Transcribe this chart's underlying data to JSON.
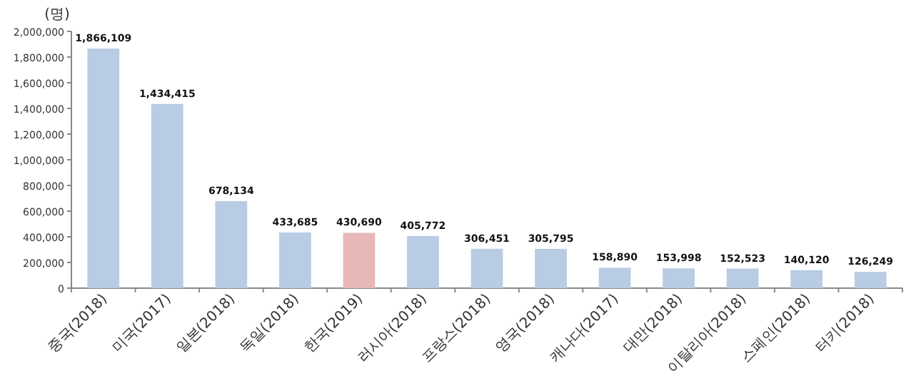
{
  "chart_data": {
    "type": "bar",
    "ylabel": "(명)",
    "categories": [
      "중국(2018)",
      "미국(2017)",
      "일본(2018)",
      "독일(2018)",
      "한국(2019)",
      "러시아(2018)",
      "프랑스(2018)",
      "영국(2018)",
      "캐나다(2017)",
      "대만(2018)",
      "이탈리아(2018)",
      "스페인(2018)",
      "터키(2018)"
    ],
    "values": [
      1866109,
      1434415,
      678134,
      433685,
      430690,
      405772,
      306451,
      305795,
      158890,
      153998,
      152523,
      140120,
      126249
    ],
    "value_labels": [
      "1,866,109",
      "1,434,415",
      "678,134",
      "433,685",
      "430,690",
      "405,772",
      "306,451",
      "305,795",
      "158,890",
      "153,998",
      "152,523",
      "140,120",
      "126,249"
    ],
    "colors": [
      "#b8cce4",
      "#b8cce4",
      "#b8cce4",
      "#b8cce4",
      "#e6b9b8",
      "#b8cce4",
      "#b8cce4",
      "#b8cce4",
      "#b8cce4",
      "#b8cce4",
      "#b8cce4",
      "#b8cce4",
      "#b8cce4"
    ],
    "ylim": [
      0,
      2000000
    ],
    "yticks": [
      0,
      {
        "value": 200000,
        "label": "200,000"
      },
      {
        "value": 400000,
        "label": "400,000"
      },
      {
        "value": 600000,
        "label": "600,000"
      },
      {
        "value": 800000,
        "label": "800,000"
      },
      {
        "value": 1000000,
        "label": "1,000,000"
      },
      {
        "value": 1200000,
        "label": "1,200,000"
      },
      {
        "value": 1400000,
        "label": "1,400,000"
      },
      {
        "value": 1600000,
        "label": "1,600,000"
      },
      {
        "value": 1800000,
        "label": "1,800,000"
      },
      {
        "value": 2000000,
        "label": "2,000,000"
      }
    ],
    "grid": false
  }
}
